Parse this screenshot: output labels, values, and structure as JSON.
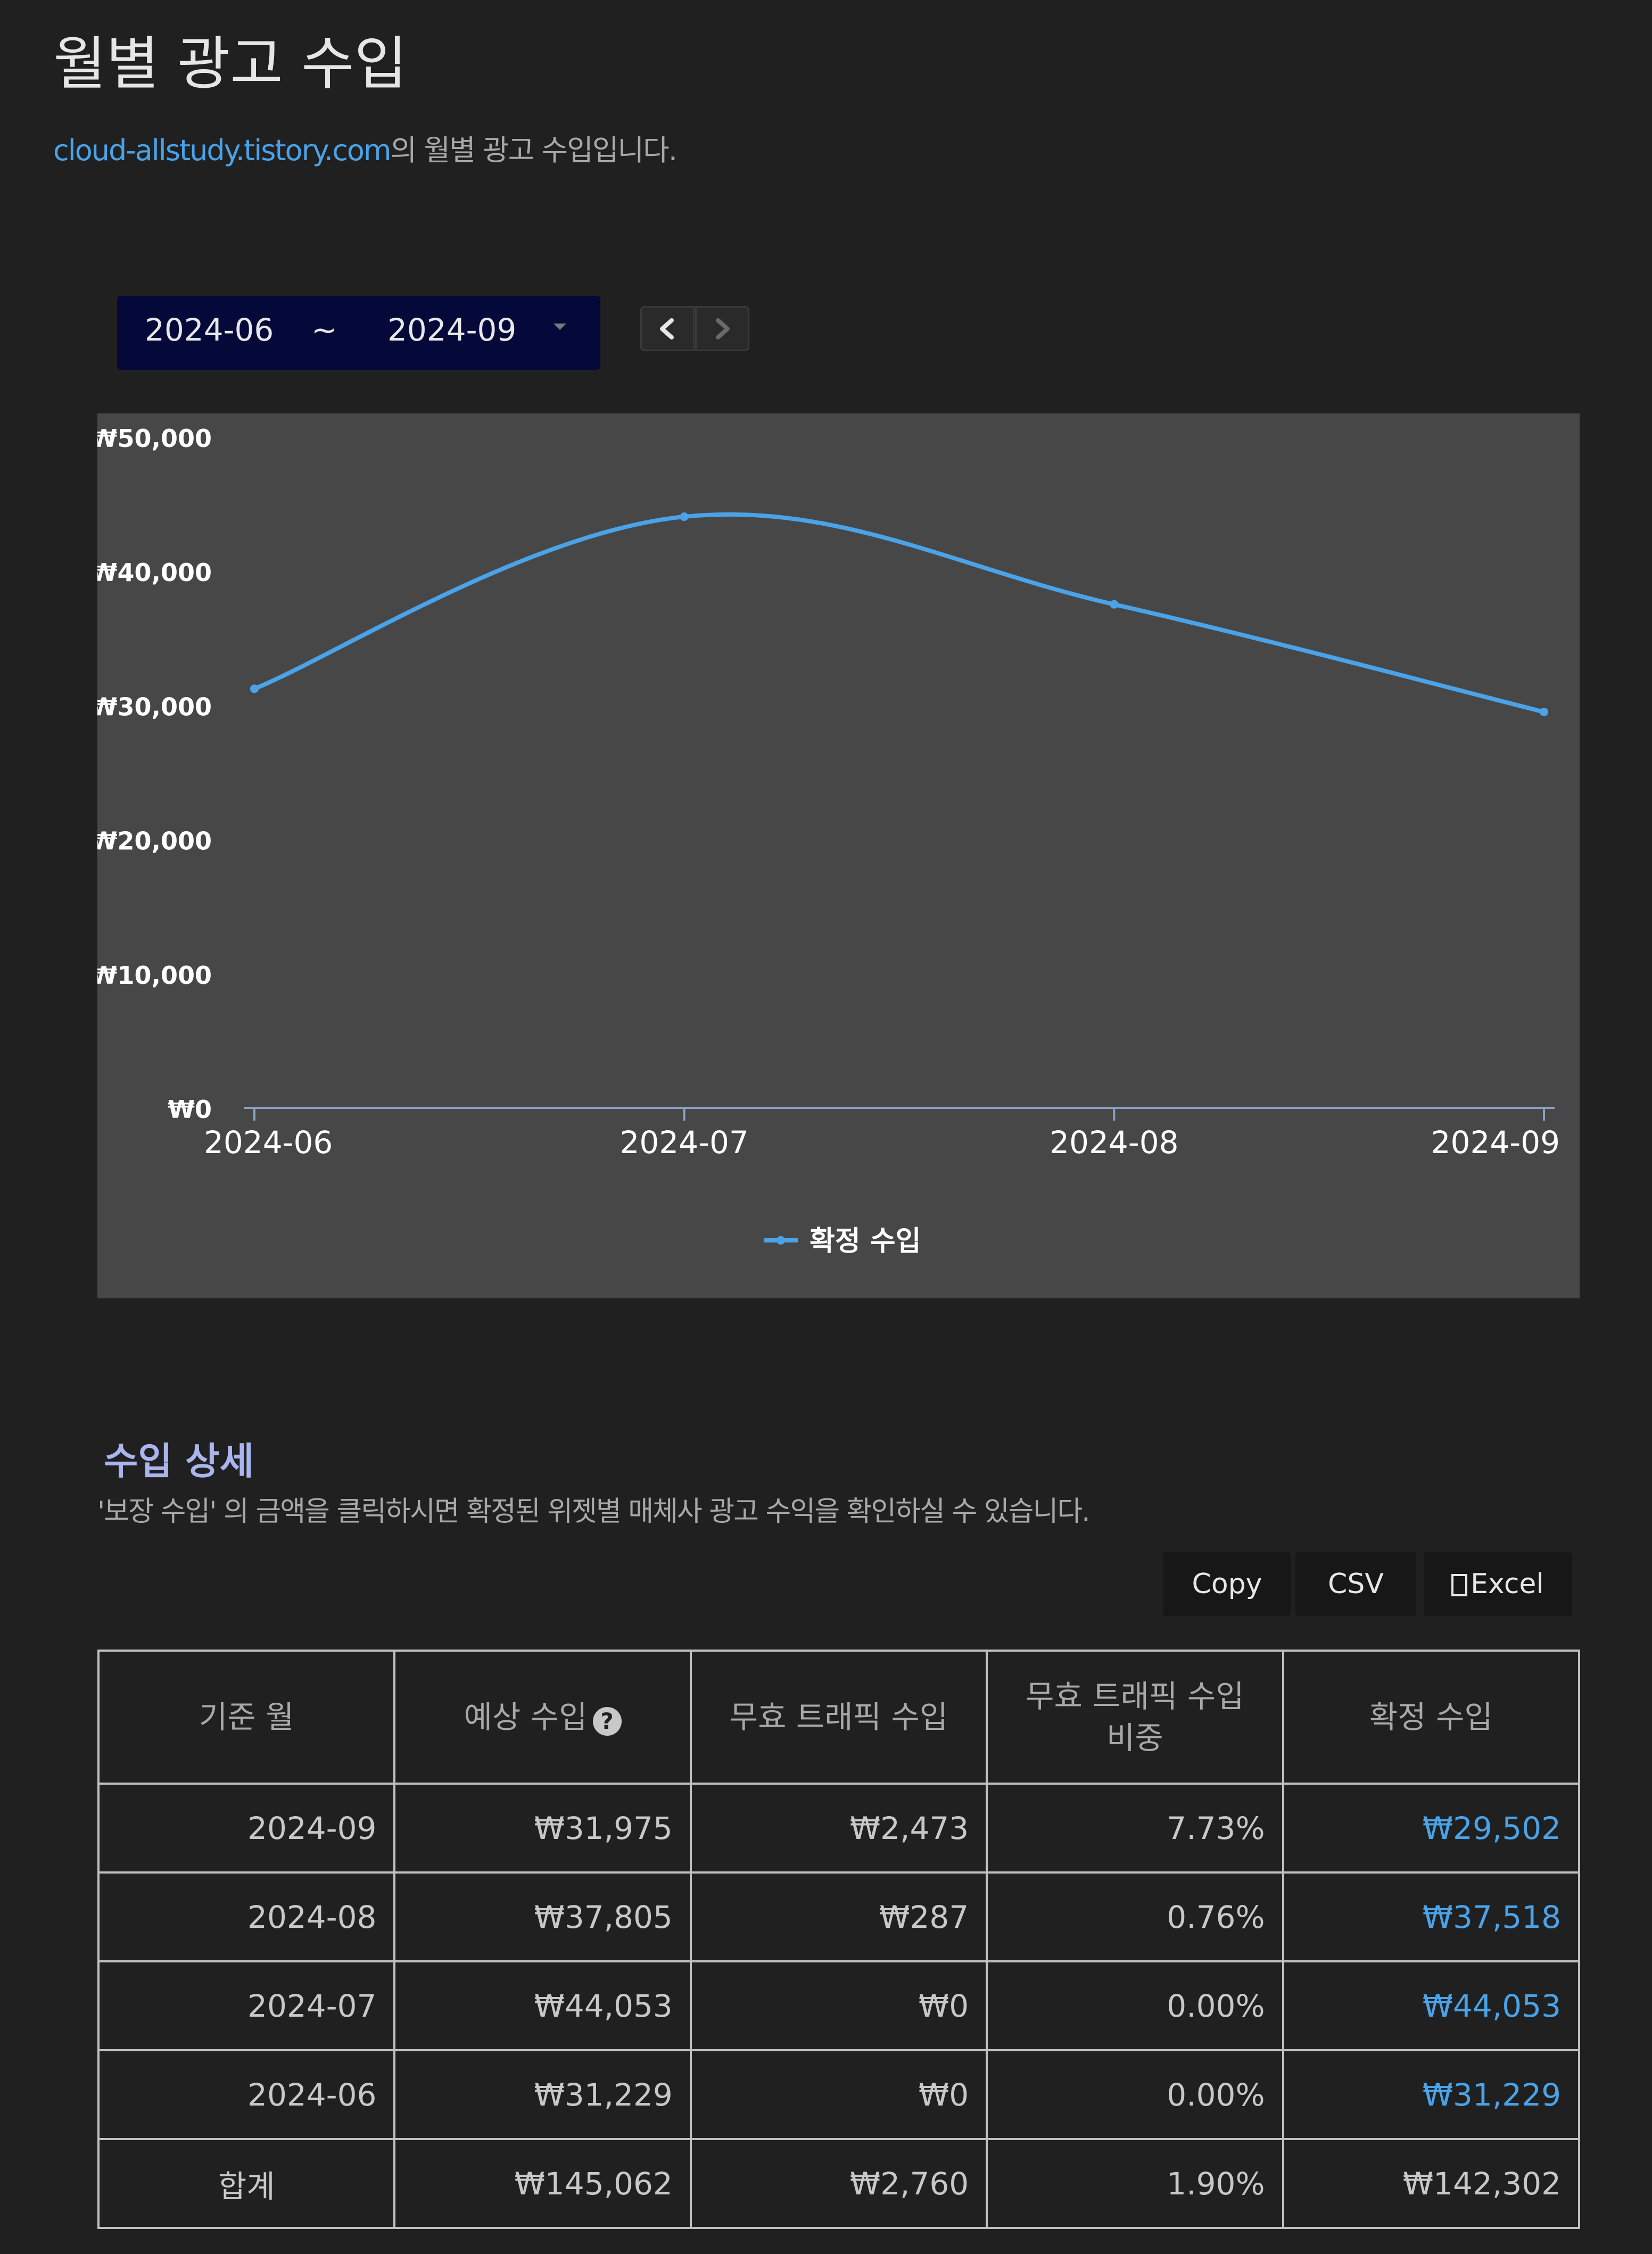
{
  "header": {
    "title": "월별 광고 수입",
    "site": "cloud-allstudy.tistory.com",
    "subtitle_suffix": "의 월별 광고 수입입니다."
  },
  "range": {
    "start": "2024-06",
    "separator": "~",
    "end": "2024-09"
  },
  "chart_data": {
    "type": "line",
    "categories": [
      "2024-06",
      "2024-07",
      "2024-08",
      "2024-09"
    ],
    "series": [
      {
        "name": "확정 수입",
        "values": [
          31229,
          44053,
          37518,
          29502
        ]
      }
    ],
    "yticks": [
      "₩50,000",
      "₩40,000",
      "₩30,000",
      "₩20,000",
      "₩10,000",
      "₩0"
    ],
    "ylim": [
      0,
      50000
    ],
    "legend_position": "bottom",
    "colors": {
      "series": "#4aa3e8",
      "axis": "#8aa0c0",
      "panel": "#474747"
    }
  },
  "detail": {
    "title": "수입 상세",
    "note": "'보장 수입' 의 금액을 클릭하시면 확정된 위젯별 매체사 광고 수익을 확인하실 수 있습니다.",
    "buttons": {
      "copy": "Copy",
      "csv": "CSV",
      "excel": "Excel"
    },
    "columns": [
      "기준 월",
      "예상 수입",
      "무효 트래픽 수입",
      "무효 트래픽 수입\n비중",
      "확정 수입"
    ],
    "rows": [
      [
        "2024-09",
        "₩31,975",
        "₩2,473",
        "7.73%",
        "₩29,502"
      ],
      [
        "2024-08",
        "₩37,805",
        "₩287",
        "0.76%",
        "₩37,518"
      ],
      [
        "2024-07",
        "₩44,053",
        "₩0",
        "0.00%",
        "₩44,053"
      ],
      [
        "2024-06",
        "₩31,229",
        "₩0",
        "0.00%",
        "₩31,229"
      ]
    ],
    "total": [
      "합계",
      "₩145,062",
      "₩2,760",
      "1.90%",
      "₩142,302"
    ]
  }
}
